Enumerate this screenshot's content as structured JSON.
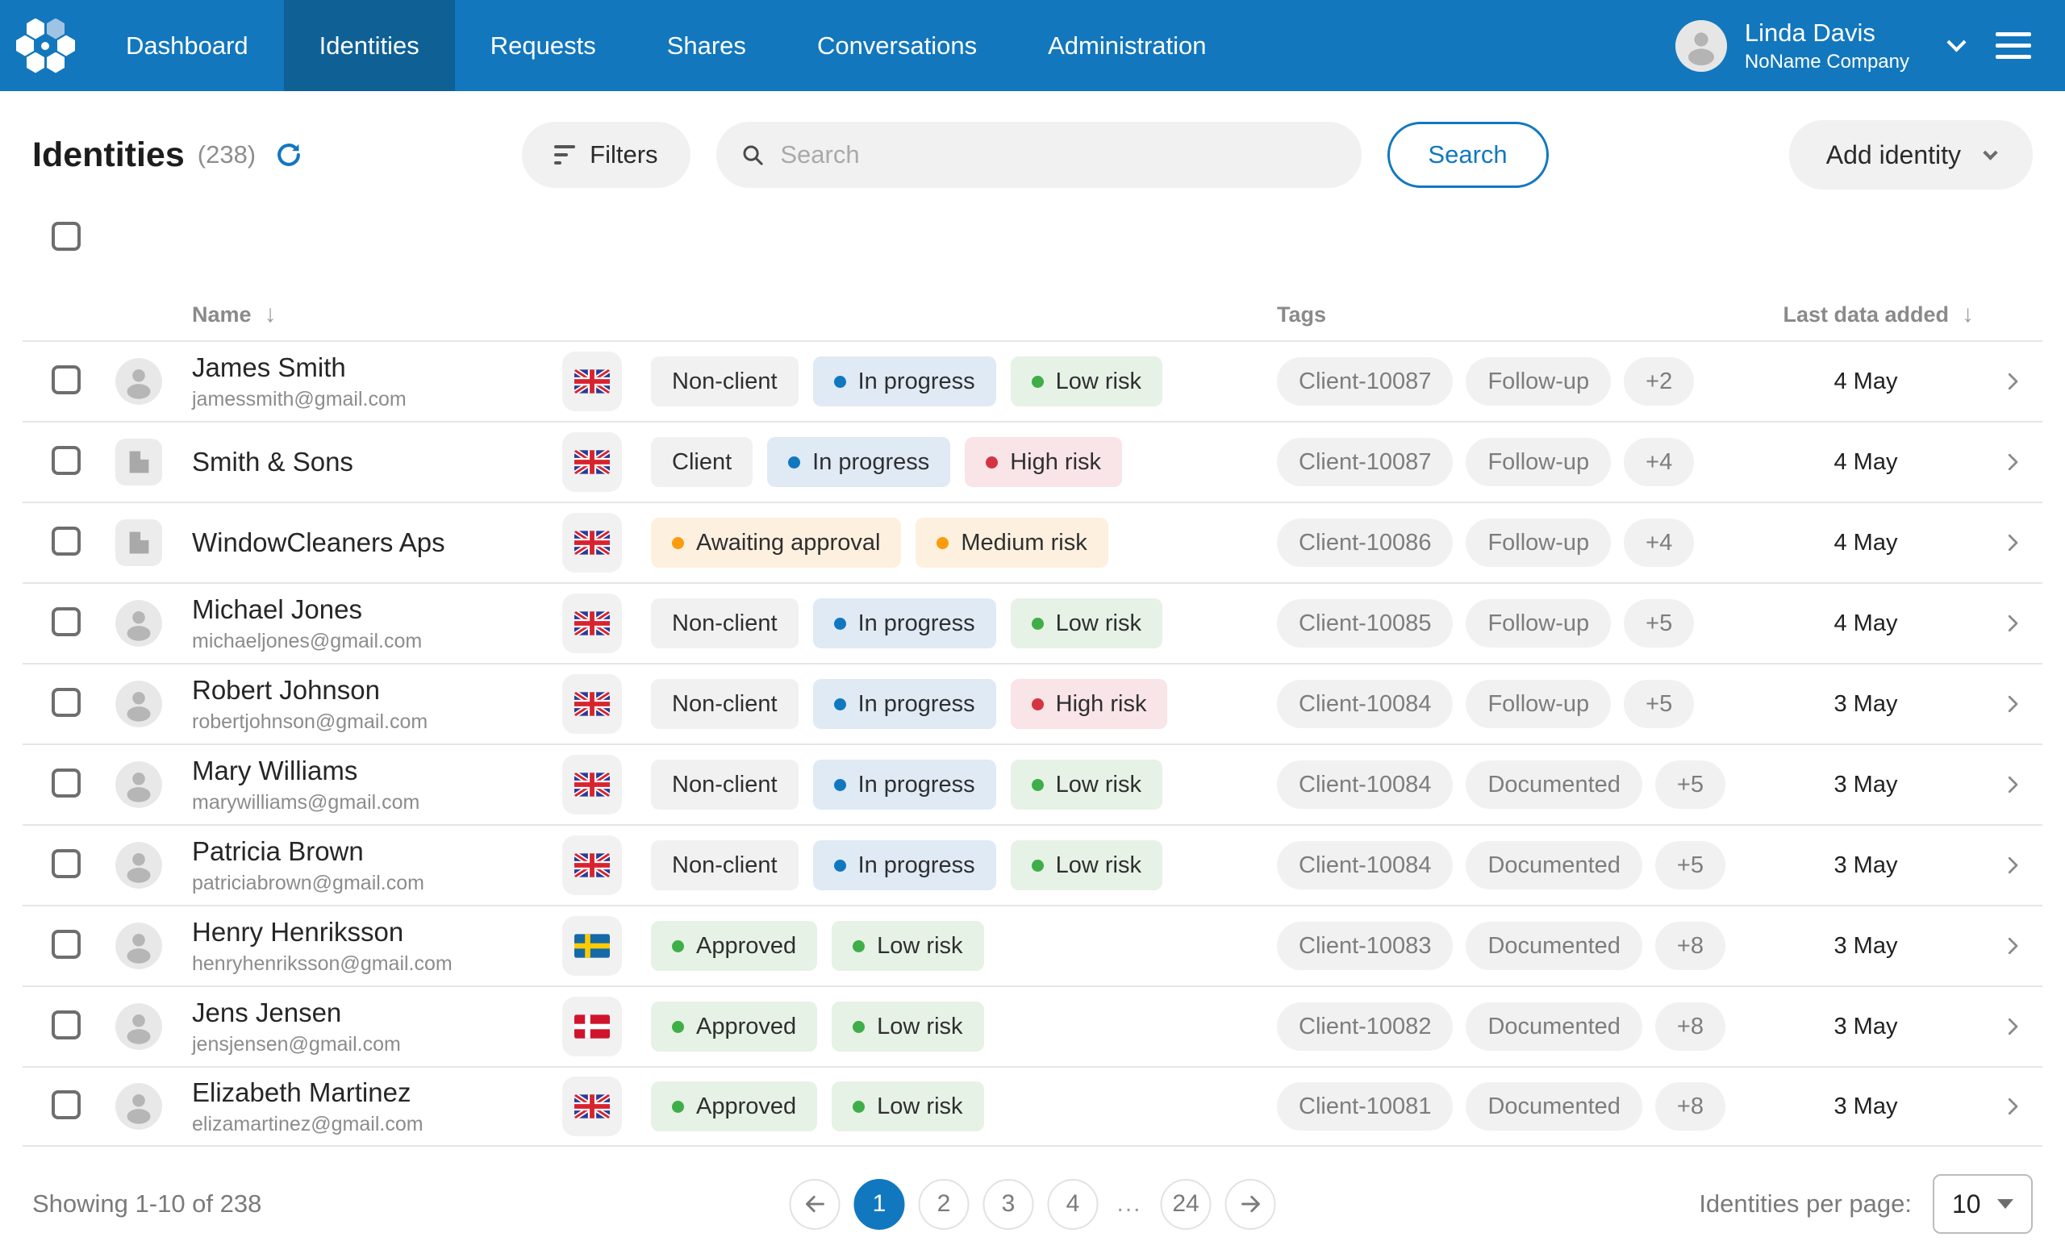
{
  "nav": {
    "items": [
      {
        "label": "Dashboard",
        "active": false
      },
      {
        "label": "Identities",
        "active": true
      },
      {
        "label": "Requests",
        "active": false
      },
      {
        "label": "Shares",
        "active": false
      },
      {
        "label": "Conversations",
        "active": false
      },
      {
        "label": "Administration",
        "active": false
      }
    ],
    "user": {
      "name": "Linda Davis",
      "company": "NoName Company"
    }
  },
  "header": {
    "title": "Identities",
    "count": "(238)"
  },
  "toolbar": {
    "filters_label": "Filters",
    "search_placeholder": "Search",
    "search_value": "",
    "search_button": "Search",
    "add_identity_label": "Add identity"
  },
  "table": {
    "columns": {
      "name": "Name",
      "tags": "Tags",
      "last_data": "Last data added"
    },
    "sort_icon": "↓",
    "rows": [
      {
        "name": "James Smith",
        "email": "jamessmith@gmail.com",
        "entity": "person",
        "flag": "gb",
        "chips": [
          {
            "label": "Non-client",
            "color": "gray"
          },
          {
            "label": "In progress",
            "color": "blue"
          },
          {
            "label": "Low risk",
            "color": "green"
          }
        ],
        "tags": [
          "Client-10087",
          "Follow-up",
          "+2"
        ],
        "date": "4 May"
      },
      {
        "name": "Smith & Sons",
        "email": "",
        "entity": "company",
        "flag": "gb",
        "chips": [
          {
            "label": "Client",
            "color": "gray"
          },
          {
            "label": "In progress",
            "color": "blue"
          },
          {
            "label": "High risk",
            "color": "red"
          }
        ],
        "tags": [
          "Client-10087",
          "Follow-up",
          "+4"
        ],
        "date": "4 May"
      },
      {
        "name": "WindowCleaners Aps",
        "email": "",
        "entity": "company",
        "flag": "gb",
        "chips": [
          {
            "label": "Awaiting approval",
            "color": "orange"
          },
          {
            "label": "Medium risk",
            "color": "orange"
          }
        ],
        "tags": [
          "Client-10086",
          "Follow-up",
          "+4"
        ],
        "date": "4 May"
      },
      {
        "name": "Michael Jones",
        "email": "michaeljones@gmail.com",
        "entity": "person",
        "flag": "gb",
        "chips": [
          {
            "label": "Non-client",
            "color": "gray"
          },
          {
            "label": "In progress",
            "color": "blue"
          },
          {
            "label": "Low risk",
            "color": "green"
          }
        ],
        "tags": [
          "Client-10085",
          "Follow-up",
          "+5"
        ],
        "date": "4 May"
      },
      {
        "name": "Robert Johnson",
        "email": "robertjohnson@gmail.com",
        "entity": "person",
        "flag": "gb",
        "chips": [
          {
            "label": "Non-client",
            "color": "gray"
          },
          {
            "label": "In progress",
            "color": "blue"
          },
          {
            "label": "High risk",
            "color": "red"
          }
        ],
        "tags": [
          "Client-10084",
          "Follow-up",
          "+5"
        ],
        "date": "3 May"
      },
      {
        "name": "Mary Williams",
        "email": "marywilliams@gmail.com",
        "entity": "person",
        "flag": "gb",
        "chips": [
          {
            "label": "Non-client",
            "color": "gray"
          },
          {
            "label": "In progress",
            "color": "blue"
          },
          {
            "label": "Low risk",
            "color": "green"
          }
        ],
        "tags": [
          "Client-10084",
          "Documented",
          "+5"
        ],
        "date": "3 May"
      },
      {
        "name": "Patricia Brown",
        "email": "patriciabrown@gmail.com",
        "entity": "person",
        "flag": "gb",
        "chips": [
          {
            "label": "Non-client",
            "color": "gray"
          },
          {
            "label": "In progress",
            "color": "blue"
          },
          {
            "label": "Low risk",
            "color": "green"
          }
        ],
        "tags": [
          "Client-10084",
          "Documented",
          "+5"
        ],
        "date": "3 May"
      },
      {
        "name": "Henry Henriksson",
        "email": "henryhenriksson@gmail.com",
        "entity": "person",
        "flag": "se",
        "chips": [
          {
            "label": "Approved",
            "color": "green"
          },
          {
            "label": "Low risk",
            "color": "green"
          }
        ],
        "tags": [
          "Client-10083",
          "Documented",
          "+8"
        ],
        "date": "3 May"
      },
      {
        "name": "Jens Jensen",
        "email": "jensjensen@gmail.com",
        "entity": "person",
        "flag": "dk",
        "chips": [
          {
            "label": "Approved",
            "color": "green"
          },
          {
            "label": "Low risk",
            "color": "green"
          }
        ],
        "tags": [
          "Client-10082",
          "Documented",
          "+8"
        ],
        "date": "3 May"
      },
      {
        "name": "Elizabeth Martinez",
        "email": "elizamartinez@gmail.com",
        "entity": "person",
        "flag": "gb",
        "chips": [
          {
            "label": "Approved",
            "color": "green"
          },
          {
            "label": "Low risk",
            "color": "green"
          }
        ],
        "tags": [
          "Client-10081",
          "Documented",
          "+8"
        ],
        "date": "3 May"
      }
    ]
  },
  "footer": {
    "showing": "Showing 1-10 of 238",
    "pages": [
      "1",
      "2",
      "3",
      "4",
      "...",
      "24"
    ],
    "active_page": "1",
    "per_page_label": "Identities per page:",
    "per_page_value": "10"
  },
  "colors": {
    "nav_blue": "#1277bd",
    "nav_active": "#0e6095",
    "accent_blue": "#1178c0",
    "status_blue": "#1178c0",
    "status_green": "#3fae49",
    "status_red": "#d43440",
    "status_orange": "#fb9b0e"
  },
  "icons": [
    "logo-hexagons",
    "user-avatar-icon",
    "chevron-down-icon",
    "hamburger-icon",
    "refresh-icon",
    "filter-icon",
    "search-icon",
    "sort-desc-icon",
    "person-avatar-icon",
    "company-avatar-icon",
    "flag-gb-icon",
    "flag-se-icon",
    "flag-dk-icon",
    "row-chevron-icon",
    "arrow-left-icon",
    "arrow-right-icon"
  ]
}
